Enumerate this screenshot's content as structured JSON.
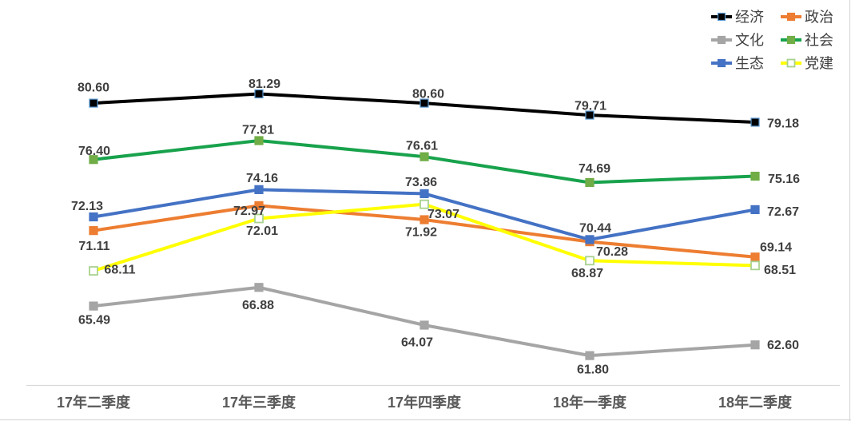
{
  "chart_data": {
    "type": "line",
    "title": "",
    "categories": [
      "17年二季度",
      "17年三季度",
      "17年四季度",
      "18年一季度",
      "18年二季度"
    ],
    "series": [
      {
        "key": "economy",
        "name": "经济",
        "color": "#000000",
        "marker_fill": "#000000",
        "marker_stroke": "#5B9BD5",
        "values": [
          80.6,
          81.29,
          80.6,
          79.71,
          79.18
        ],
        "label_offsets": [
          [
            0,
            -20
          ],
          [
            7,
            -13
          ],
          [
            5,
            -12
          ],
          [
            1,
            -12
          ],
          [
            35,
            1
          ]
        ]
      },
      {
        "key": "politics",
        "name": "政治",
        "color": "#ED7D31",
        "marker_fill": "#ED7D31",
        "marker_stroke": "#ED7D31",
        "values": [
          71.11,
          72.97,
          71.92,
          70.28,
          69.14
        ],
        "label_offsets": [
          [
            1,
            19
          ],
          [
            -12,
            6
          ],
          [
            -4,
            15
          ],
          [
            28,
            12
          ],
          [
            26,
            -13
          ]
        ]
      },
      {
        "key": "culture",
        "name": "文化",
        "color": "#A5A5A5",
        "marker_fill": "#A5A5A5",
        "marker_stroke": "#A5A5A5",
        "values": [
          65.49,
          66.88,
          64.07,
          61.8,
          62.6
        ],
        "label_offsets": [
          [
            1,
            17
          ],
          [
            -1,
            22
          ],
          [
            -9,
            21
          ],
          [
            4,
            17
          ],
          [
            35,
            0
          ]
        ]
      },
      {
        "key": "society",
        "name": "社会",
        "color": "#18A24C",
        "marker_fill": "#70AD47",
        "marker_stroke": "#70AD47",
        "values": [
          76.4,
          77.81,
          76.61,
          74.69,
          75.16
        ],
        "label_offsets": [
          [
            1,
            -11
          ],
          [
            -1,
            -14
          ],
          [
            -3,
            -14
          ],
          [
            6,
            -18
          ],
          [
            36,
            3
          ]
        ]
      },
      {
        "key": "ecology",
        "name": "生态",
        "color": "#4472C4",
        "marker_fill": "#4472C4",
        "marker_stroke": "#4472C4",
        "values": [
          72.13,
          74.16,
          73.86,
          70.44,
          72.67
        ],
        "label_offsets": [
          [
            -8,
            -14
          ],
          [
            4,
            -15
          ],
          [
            -4,
            -15
          ],
          [
            7,
            -15
          ],
          [
            35,
            2
          ]
        ]
      },
      {
        "key": "party-building",
        "name": "党建",
        "color": "#FFFF00",
        "marker_fill": "#FFFFFF",
        "marker_stroke": "#A9D18E",
        "values": [
          68.11,
          72.01,
          73.07,
          68.87,
          68.51
        ],
        "label_offsets": [
          [
            33,
            -2
          ],
          [
            4,
            15
          ],
          [
            24,
            12
          ],
          [
            -3,
            15
          ],
          [
            31,
            5
          ]
        ]
      }
    ],
    "legend": {
      "position": "top-right",
      "columns": 2,
      "items": [
        "经济",
        "政治",
        "文化",
        "社会",
        "生态",
        "党建"
      ]
    },
    "x_axis": {
      "line_color": "#D9D9D9",
      "label_color": "#595959"
    },
    "y_axis": {
      "visible": false,
      "approx_range": [
        59.6,
        84.0
      ]
    },
    "grid": "off",
    "label_color": "#404040",
    "legend_text_color": "#404040"
  }
}
